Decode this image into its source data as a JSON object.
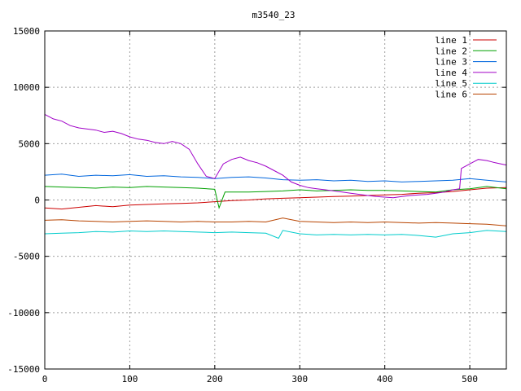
{
  "chart_data": {
    "type": "line",
    "title": "m3540_23",
    "xlabel": "",
    "ylabel": "",
    "xlim": [
      0,
      543
    ],
    "ylim": [
      -15000,
      15000
    ],
    "xticks": [
      0,
      100,
      200,
      300,
      400,
      500
    ],
    "yticks": [
      -15000,
      -10000,
      -5000,
      0,
      5000,
      10000,
      15000
    ],
    "grid": true,
    "legend": "top-right",
    "series": [
      {
        "name": "line 1",
        "color": "#cc0000",
        "points": [
          [
            0,
            -700
          ],
          [
            20,
            -800
          ],
          [
            40,
            -650
          ],
          [
            60,
            -500
          ],
          [
            80,
            -600
          ],
          [
            100,
            -450
          ],
          [
            120,
            -400
          ],
          [
            140,
            -350
          ],
          [
            160,
            -300
          ],
          [
            180,
            -250
          ],
          [
            200,
            -150
          ],
          [
            220,
            -50
          ],
          [
            240,
            0
          ],
          [
            260,
            100
          ],
          [
            280,
            150
          ],
          [
            300,
            200
          ],
          [
            320,
            250
          ],
          [
            340,
            300
          ],
          [
            360,
            350
          ],
          [
            380,
            400
          ],
          [
            400,
            450
          ],
          [
            420,
            500
          ],
          [
            440,
            600
          ],
          [
            460,
            650
          ],
          [
            480,
            750
          ],
          [
            500,
            900
          ],
          [
            520,
            1050
          ],
          [
            543,
            1100
          ]
        ]
      },
      {
        "name": "line 2",
        "color": "#00a000",
        "points": [
          [
            0,
            1200
          ],
          [
            20,
            1150
          ],
          [
            40,
            1100
          ],
          [
            60,
            1050
          ],
          [
            80,
            1150
          ],
          [
            100,
            1100
          ],
          [
            120,
            1200
          ],
          [
            140,
            1150
          ],
          [
            160,
            1100
          ],
          [
            180,
            1050
          ],
          [
            200,
            950
          ],
          [
            205,
            -700
          ],
          [
            212,
            700
          ],
          [
            240,
            700
          ],
          [
            260,
            750
          ],
          [
            280,
            800
          ],
          [
            300,
            900
          ],
          [
            320,
            800
          ],
          [
            340,
            850
          ],
          [
            360,
            900
          ],
          [
            380,
            850
          ],
          [
            400,
            850
          ],
          [
            420,
            800
          ],
          [
            440,
            750
          ],
          [
            460,
            700
          ],
          [
            480,
            900
          ],
          [
            500,
            1000
          ],
          [
            520,
            1200
          ],
          [
            543,
            1000
          ]
        ]
      },
      {
        "name": "line 3",
        "color": "#0066dd",
        "points": [
          [
            0,
            2200
          ],
          [
            20,
            2300
          ],
          [
            40,
            2100
          ],
          [
            60,
            2200
          ],
          [
            80,
            2150
          ],
          [
            100,
            2250
          ],
          [
            120,
            2100
          ],
          [
            140,
            2150
          ],
          [
            160,
            2050
          ],
          [
            180,
            2000
          ],
          [
            200,
            1900
          ],
          [
            220,
            2000
          ],
          [
            240,
            2050
          ],
          [
            260,
            1950
          ],
          [
            280,
            1800
          ],
          [
            300,
            1750
          ],
          [
            320,
            1800
          ],
          [
            340,
            1700
          ],
          [
            360,
            1750
          ],
          [
            380,
            1650
          ],
          [
            400,
            1700
          ],
          [
            420,
            1600
          ],
          [
            440,
            1650
          ],
          [
            460,
            1700
          ],
          [
            480,
            1750
          ],
          [
            500,
            1900
          ],
          [
            520,
            1750
          ],
          [
            543,
            1600
          ]
        ]
      },
      {
        "name": "line 4",
        "color": "#a000c8",
        "points": [
          [
            0,
            7600
          ],
          [
            10,
            7200
          ],
          [
            20,
            7000
          ],
          [
            30,
            6600
          ],
          [
            40,
            6400
          ],
          [
            50,
            6300
          ],
          [
            60,
            6200
          ],
          [
            70,
            6000
          ],
          [
            80,
            6100
          ],
          [
            90,
            5900
          ],
          [
            100,
            5600
          ],
          [
            110,
            5400
          ],
          [
            120,
            5300
          ],
          [
            130,
            5100
          ],
          [
            140,
            5000
          ],
          [
            150,
            5200
          ],
          [
            160,
            5000
          ],
          [
            170,
            4500
          ],
          [
            180,
            3200
          ],
          [
            190,
            2100
          ],
          [
            200,
            1900
          ],
          [
            210,
            3200
          ],
          [
            220,
            3600
          ],
          [
            230,
            3800
          ],
          [
            240,
            3500
          ],
          [
            250,
            3300
          ],
          [
            260,
            3000
          ],
          [
            270,
            2600
          ],
          [
            280,
            2200
          ],
          [
            290,
            1600
          ],
          [
            300,
            1300
          ],
          [
            310,
            1100
          ],
          [
            320,
            1000
          ],
          [
            330,
            900
          ],
          [
            340,
            800
          ],
          [
            350,
            700
          ],
          [
            360,
            600
          ],
          [
            370,
            500
          ],
          [
            380,
            400
          ],
          [
            390,
            300
          ],
          [
            400,
            250
          ],
          [
            410,
            200
          ],
          [
            420,
            300
          ],
          [
            430,
            400
          ],
          [
            440,
            450
          ],
          [
            450,
            500
          ],
          [
            460,
            600
          ],
          [
            470,
            700
          ],
          [
            480,
            900
          ],
          [
            488,
            1000
          ],
          [
            490,
            2800
          ],
          [
            500,
            3200
          ],
          [
            510,
            3600
          ],
          [
            520,
            3500
          ],
          [
            530,
            3300
          ],
          [
            543,
            3100
          ]
        ]
      },
      {
        "name": "line 5",
        "color": "#00cccc",
        "points": [
          [
            0,
            -3000
          ],
          [
            20,
            -2950
          ],
          [
            40,
            -2900
          ],
          [
            60,
            -2800
          ],
          [
            80,
            -2850
          ],
          [
            100,
            -2750
          ],
          [
            120,
            -2800
          ],
          [
            140,
            -2750
          ],
          [
            160,
            -2800
          ],
          [
            180,
            -2850
          ],
          [
            200,
            -2900
          ],
          [
            220,
            -2850
          ],
          [
            240,
            -2900
          ],
          [
            260,
            -2950
          ],
          [
            275,
            -3400
          ],
          [
            280,
            -2700
          ],
          [
            300,
            -3000
          ],
          [
            320,
            -3100
          ],
          [
            340,
            -3050
          ],
          [
            360,
            -3100
          ],
          [
            380,
            -3050
          ],
          [
            400,
            -3100
          ],
          [
            420,
            -3050
          ],
          [
            440,
            -3150
          ],
          [
            460,
            -3300
          ],
          [
            480,
            -3000
          ],
          [
            500,
            -2900
          ],
          [
            520,
            -2700
          ],
          [
            543,
            -2800
          ]
        ]
      },
      {
        "name": "line 6",
        "color": "#b84400",
        "points": [
          [
            0,
            -1800
          ],
          [
            20,
            -1750
          ],
          [
            40,
            -1850
          ],
          [
            60,
            -1900
          ],
          [
            80,
            -1950
          ],
          [
            100,
            -1900
          ],
          [
            120,
            -1850
          ],
          [
            140,
            -1900
          ],
          [
            160,
            -1950
          ],
          [
            180,
            -1900
          ],
          [
            200,
            -1950
          ],
          [
            220,
            -1950
          ],
          [
            240,
            -1900
          ],
          [
            260,
            -1950
          ],
          [
            280,
            -1600
          ],
          [
            300,
            -1900
          ],
          [
            320,
            -1950
          ],
          [
            340,
            -2000
          ],
          [
            360,
            -1950
          ],
          [
            380,
            -2000
          ],
          [
            400,
            -1950
          ],
          [
            420,
            -2000
          ],
          [
            440,
            -2050
          ],
          [
            460,
            -2000
          ],
          [
            480,
            -2050
          ],
          [
            500,
            -2100
          ],
          [
            520,
            -2150
          ],
          [
            543,
            -2300
          ]
        ]
      }
    ]
  }
}
